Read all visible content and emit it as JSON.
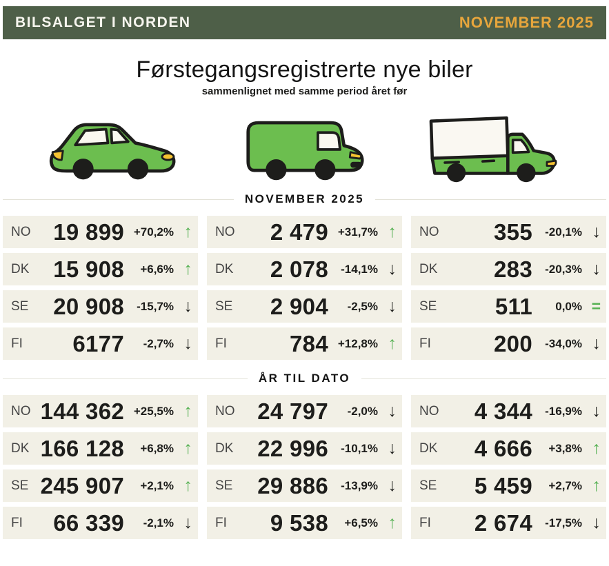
{
  "header": {
    "title": "BILSALGET I NORDEN",
    "period": "NOVEMBER 2025"
  },
  "title": {
    "main": "Førstegangsregistrerte nye biler",
    "subtitle": "sammenlignet med samme period året før"
  },
  "glyphs": {
    "up": "↑",
    "down": "↓",
    "flat": "="
  },
  "colors": {
    "header_bg": "#4e5f48",
    "accent_orange": "#e8a63c",
    "row_bg": "#f2f0e6",
    "vehicle_green": "#6cbe4f",
    "trend_up": "#56b153",
    "trend_down": "#1d1d1b",
    "headlight_yellow": "#f5c231"
  },
  "vehicles": [
    "car",
    "van",
    "truck"
  ],
  "sections": [
    {
      "label": "NOVEMBER 2025",
      "columns": [
        {
          "vehicle": "car",
          "rows": [
            {
              "country": "NO",
              "value": "19 899",
              "change": "+70,2%",
              "direction": "up"
            },
            {
              "country": "DK",
              "value": "15 908",
              "change": "+6,6%",
              "direction": "up"
            },
            {
              "country": "SE",
              "value": "20 908",
              "change": "-15,7%",
              "direction": "down"
            },
            {
              "country": "FI",
              "value": "6177",
              "change": "-2,7%",
              "direction": "down"
            }
          ]
        },
        {
          "vehicle": "van",
          "rows": [
            {
              "country": "NO",
              "value": "2 479",
              "change": "+31,7%",
              "direction": "up"
            },
            {
              "country": "DK",
              "value": "2 078",
              "change": "-14,1%",
              "direction": "down"
            },
            {
              "country": "SE",
              "value": "2 904",
              "change": "-2,5%",
              "direction": "down"
            },
            {
              "country": "FI",
              "value": "784",
              "change": "+12,8%",
              "direction": "up"
            }
          ]
        },
        {
          "vehicle": "truck",
          "rows": [
            {
              "country": "NO",
              "value": "355",
              "change": "-20,1%",
              "direction": "down"
            },
            {
              "country": "DK",
              "value": "283",
              "change": "-20,3%",
              "direction": "down"
            },
            {
              "country": "SE",
              "value": "511",
              "change": "0,0%",
              "direction": "flat"
            },
            {
              "country": "FI",
              "value": "200",
              "change": "-34,0%",
              "direction": "down"
            }
          ]
        }
      ]
    },
    {
      "label": "ÅR TIL DATO",
      "columns": [
        {
          "vehicle": "car",
          "rows": [
            {
              "country": "NO",
              "value": "144 362",
              "change": "+25,5%",
              "direction": "up"
            },
            {
              "country": "DK",
              "value": "166 128",
              "change": "+6,8%",
              "direction": "up"
            },
            {
              "country": "SE",
              "value": "245 907",
              "change": "+2,1%",
              "direction": "up"
            },
            {
              "country": "FI",
              "value": "66 339",
              "change": "-2,1%",
              "direction": "down"
            }
          ]
        },
        {
          "vehicle": "van",
          "rows": [
            {
              "country": "NO",
              "value": "24 797",
              "change": "-2,0%",
              "direction": "down"
            },
            {
              "country": "DK",
              "value": "22 996",
              "change": "-10,1%",
              "direction": "down"
            },
            {
              "country": "SE",
              "value": "29 886",
              "change": "-13,9%",
              "direction": "down"
            },
            {
              "country": "FI",
              "value": "9 538",
              "change": "+6,5%",
              "direction": "up"
            }
          ]
        },
        {
          "vehicle": "truck",
          "rows": [
            {
              "country": "NO",
              "value": "4 344",
              "change": "-16,9%",
              "direction": "down"
            },
            {
              "country": "DK",
              "value": "4 666",
              "change": "+3,8%",
              "direction": "up"
            },
            {
              "country": "SE",
              "value": "5 459",
              "change": "+2,7%",
              "direction": "up"
            },
            {
              "country": "FI",
              "value": "2 674",
              "change": "-17,5%",
              "direction": "down"
            }
          ]
        }
      ]
    }
  ],
  "chart_data": [
    {
      "type": "table",
      "title": "NOVEMBER 2025",
      "categories": [
        "NO",
        "DK",
        "SE",
        "FI"
      ],
      "series": [
        {
          "name": "car",
          "values": [
            19899,
            15908,
            20908,
            6177
          ],
          "change_pct": [
            70.2,
            6.6,
            -15.7,
            -2.7
          ]
        },
        {
          "name": "van",
          "values": [
            2479,
            2078,
            2904,
            784
          ],
          "change_pct": [
            31.7,
            -14.1,
            -2.5,
            12.8
          ]
        },
        {
          "name": "truck",
          "values": [
            355,
            283,
            511,
            200
          ],
          "change_pct": [
            -20.1,
            -20.3,
            0.0,
            -34.0
          ]
        }
      ]
    },
    {
      "type": "table",
      "title": "ÅR TIL DATO",
      "categories": [
        "NO",
        "DK",
        "SE",
        "FI"
      ],
      "series": [
        {
          "name": "car",
          "values": [
            144362,
            166128,
            245907,
            66339
          ],
          "change_pct": [
            25.5,
            6.8,
            2.1,
            -2.1
          ]
        },
        {
          "name": "van",
          "values": [
            24797,
            22996,
            29886,
            9538
          ],
          "change_pct": [
            -2.0,
            -10.1,
            -13.9,
            6.5
          ]
        },
        {
          "name": "truck",
          "values": [
            4344,
            4666,
            5459,
            2674
          ],
          "change_pct": [
            -16.9,
            3.8,
            2.7,
            -17.5
          ]
        }
      ]
    }
  ]
}
